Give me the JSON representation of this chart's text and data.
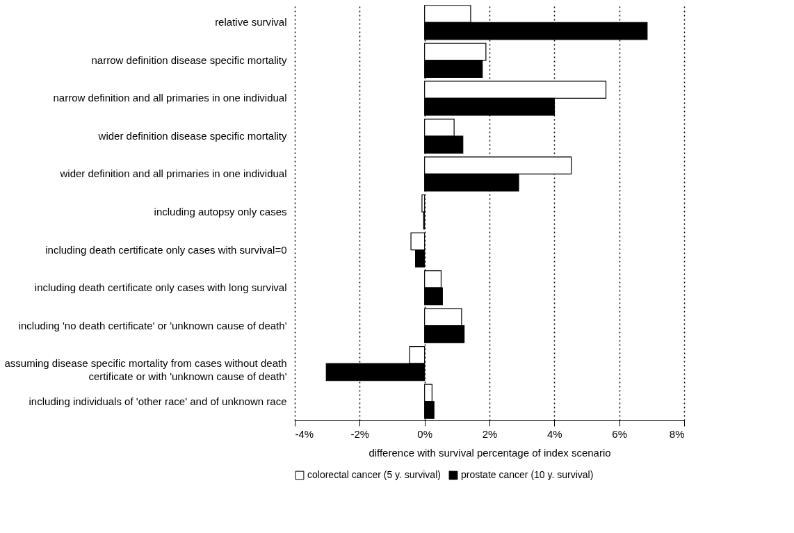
{
  "chart_data": {
    "type": "bar",
    "orientation": "horizontal",
    "xlabel": "difference with survival percentage of index scenario",
    "categories": [
      "relative survival",
      "narrow definition disease specific mortality",
      "narrow definition and all primaries in one individual",
      "wider definition disease specific mortality",
      "wider definition and all primaries in one individual",
      "including autopsy only cases",
      "including death certificate only cases with survival=0",
      "including death certificate only cases with long survival",
      "including 'no death certificate' or 'unknown cause of death'",
      "assuming disease specific mortality from cases without death\ncertificate or with 'unknown cause of death'",
      "including individuals of 'other race' and of unknown race"
    ],
    "series": [
      {
        "name": "colorectal cancer (5 y. survival)",
        "color": "#ffffff",
        "values": [
          1.42,
          1.89,
          5.59,
          0.91,
          4.52,
          -0.08,
          -0.42,
          0.51,
          1.14,
          -0.46,
          0.23
        ]
      },
      {
        "name": "prostate cancer (10 y. survival)",
        "color": "#000000",
        "values": [
          6.86,
          1.78,
          4.0,
          1.18,
          2.9,
          -0.03,
          -0.28,
          0.55,
          1.22,
          -3.03,
          0.29
        ]
      }
    ],
    "xlim": [
      -4,
      8
    ],
    "xticks": [
      {
        "value": -4,
        "label": "-4%"
      },
      {
        "value": -2,
        "label": "-2%"
      },
      {
        "value": 0,
        "label": "0%"
      },
      {
        "value": 2,
        "label": "2%"
      },
      {
        "value": 4,
        "label": "4%"
      },
      {
        "value": 6,
        "label": "6%"
      },
      {
        "value": 8,
        "label": "8%"
      }
    ],
    "grid": "x",
    "legend": "bottom"
  }
}
